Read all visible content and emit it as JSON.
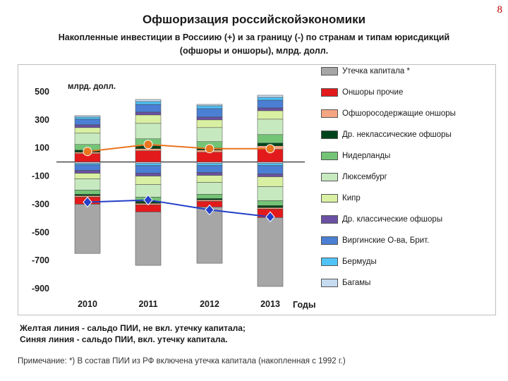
{
  "slide_number": "8",
  "title": "Офшоризация российскойэкономики",
  "subtitle_line1": "Накопленные инвестиции в Россиию (+) и за границу (-) по странам и типам юрисдикций",
  "subtitle_line2": "(офшоры и оншоры), млрд. долл.",
  "footnote_yellow": "Желтая линия - сальдо ПИИ,  не вкл. утечку капитала;",
  "footnote_blue": "Синяя линия - сальдо ПИИ, вкл. утечку капитала.",
  "note": "Примечание: *) В состав ПИИ из РФ включена утечка капитала (накопленная с 1992 г.)",
  "chart_data": {
    "type": "bar",
    "stacked": true,
    "unit_label": "млрд. долл.",
    "xlabel": "Годы",
    "categories": [
      "2010",
      "2011",
      "2012",
      "2013"
    ],
    "yticks": [
      500,
      300,
      100,
      -100,
      -300,
      -500,
      -700,
      -900
    ],
    "ylim": [
      -900,
      500
    ],
    "series": [
      {
        "name": "Утечка капитала *",
        "color": "#a6a6a6",
        "positive": [
          0,
          0,
          0,
          0
        ],
        "negative": [
          -350,
          -380,
          -400,
          -490
        ]
      },
      {
        "name": "Оншоры прочие",
        "color": "#e31a1c",
        "positive": [
          60,
          80,
          70,
          90
        ],
        "negative": [
          -50,
          -50,
          -40,
          -60
        ]
      },
      {
        "name": "Офшоросодержащие оншоры",
        "color": "#f4a582",
        "positive": [
          10,
          15,
          15,
          25
        ],
        "negative": [
          -10,
          -10,
          -10,
          -10
        ]
      },
      {
        "name": "Др. неклассические офшоры",
        "color": "#00441b",
        "positive": [
          15,
          20,
          15,
          20
        ],
        "negative": [
          -10,
          -15,
          -10,
          -15
        ]
      },
      {
        "name": "Нидерланды",
        "color": "#74c476",
        "positive": [
          40,
          50,
          45,
          60
        ],
        "negative": [
          -30,
          -30,
          -30,
          -35
        ]
      },
      {
        "name": "Люксембург",
        "color": "#c7e9c0",
        "positive": [
          80,
          110,
          100,
          110
        ],
        "negative": [
          -80,
          -90,
          -85,
          -100
        ]
      },
      {
        "name": "Кипр",
        "color": "#d9f0a3",
        "positive": [
          40,
          60,
          55,
          60
        ],
        "negative": [
          -40,
          -60,
          -50,
          -70
        ]
      },
      {
        "name": "Др. классические офшоры",
        "color": "#6a51a3",
        "positive": [
          20,
          20,
          20,
          20
        ],
        "negative": [
          -20,
          -20,
          -20,
          -20
        ]
      },
      {
        "name": "Виргинские О-ва, Брит.",
        "color": "#4a7fd4",
        "positive": [
          40,
          55,
          60,
          55
        ],
        "negative": [
          -40,
          -55,
          -50,
          -60
        ]
      },
      {
        "name": "Бермуды",
        "color": "#4fc3f7",
        "positive": [
          15,
          20,
          20,
          20
        ],
        "negative": [
          -10,
          -15,
          -15,
          -15
        ]
      },
      {
        "name": "Багамы",
        "color": "#c6dbef",
        "positive": [
          10,
          15,
          10,
          15
        ],
        "negative": [
          -10,
          -10,
          -10,
          -10
        ]
      }
    ],
    "lines": [
      {
        "name": "сальдо ПИИ, не вкл. утечку капитала",
        "color": "#e8741e",
        "values": [
          75,
          125,
          95,
          95
        ]
      },
      {
        "name": "сальдо ПИИ, вкл. утечку капитала",
        "color": "#2340c8",
        "values": [
          -285,
          -270,
          -340,
          -390
        ]
      }
    ]
  }
}
